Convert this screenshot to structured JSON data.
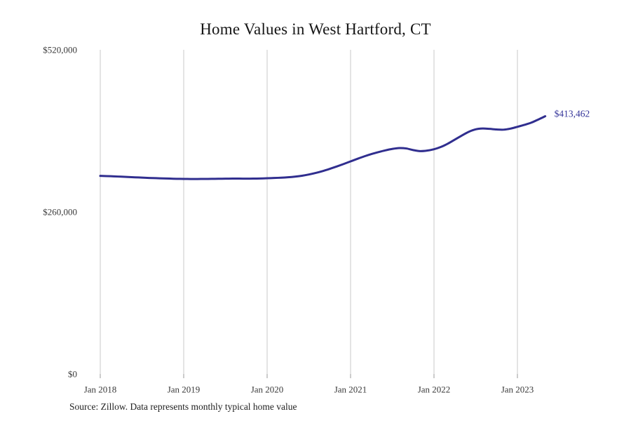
{
  "chart_data": {
    "type": "line",
    "title": "Home Values in West Hartford, CT",
    "series_name": "Typical home value",
    "x": [
      "2018-01",
      "2018-02",
      "2018-03",
      "2018-04",
      "2018-05",
      "2018-06",
      "2018-07",
      "2018-08",
      "2018-09",
      "2018-10",
      "2018-11",
      "2018-12",
      "2019-01",
      "2019-02",
      "2019-03",
      "2019-04",
      "2019-05",
      "2019-06",
      "2019-07",
      "2019-08",
      "2019-09",
      "2019-10",
      "2019-11",
      "2019-12",
      "2020-01",
      "2020-02",
      "2020-03",
      "2020-04",
      "2020-05",
      "2020-06",
      "2020-07",
      "2020-08",
      "2020-09",
      "2020-10",
      "2020-11",
      "2020-12",
      "2021-01",
      "2021-02",
      "2021-03",
      "2021-04",
      "2021-05",
      "2021-06",
      "2021-07",
      "2021-08",
      "2021-09",
      "2021-10",
      "2021-11",
      "2021-12",
      "2022-01",
      "2022-02",
      "2022-03",
      "2022-04",
      "2022-05",
      "2022-06",
      "2022-07",
      "2022-08",
      "2022-09",
      "2022-10",
      "2022-11",
      "2022-12",
      "2023-01",
      "2023-02",
      "2023-03",
      "2023-04",
      "2023-05"
    ],
    "values": [
      317800,
      317400,
      317000,
      316500,
      316000,
      315500,
      315000,
      314500,
      314100,
      313700,
      313400,
      313100,
      312900,
      312800,
      312800,
      312900,
      313000,
      313150,
      313300,
      313400,
      313400,
      313350,
      313400,
      313650,
      314000,
      314400,
      314900,
      315600,
      316600,
      318000,
      320000,
      322500,
      325500,
      329000,
      332800,
      336800,
      341000,
      345200,
      349200,
      352800,
      355900,
      358700,
      361000,
      362400,
      361800,
      359200,
      357500,
      358300,
      360500,
      364200,
      369500,
      376000,
      382500,
      388500,
      392500,
      393800,
      393200,
      392200,
      391900,
      393600,
      396500,
      399600,
      403200,
      408200,
      413462
    ],
    "x_tick_labels": [
      "Jan 2018",
      "Jan 2019",
      "Jan 2020",
      "Jan 2021",
      "Jan 2022",
      "Jan 2023"
    ],
    "x_tick_indices": [
      0,
      12,
      24,
      36,
      48,
      60
    ],
    "y_ticks": [
      {
        "value": 0,
        "label": "$0"
      },
      {
        "value": 260000,
        "label": "$260,000"
      },
      {
        "value": 520000,
        "label": "$520,000"
      }
    ],
    "ylim": [
      0,
      520000
    ],
    "grid": "vertical-only",
    "legend": "none",
    "end_label": "$413,462",
    "xlabel": "",
    "ylabel": "",
    "line_color": "#302e8f",
    "end_label_color": "#333399",
    "grid_color": "#c9c9c9",
    "tick_color": "#999999",
    "axis_text_color": "#3a3a3a"
  },
  "source_note": "Source: Zillow. Data represents monthly typical home value"
}
